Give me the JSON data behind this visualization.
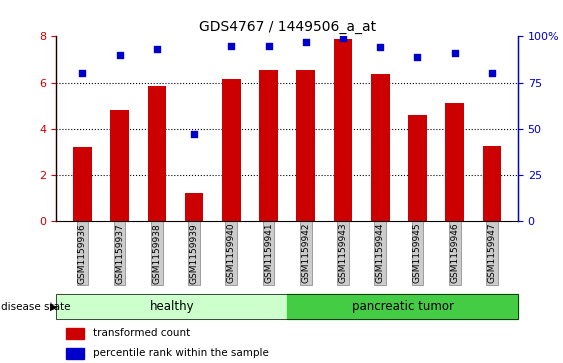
{
  "title": "GDS4767 / 1449506_a_at",
  "samples": [
    "GSM1159936",
    "GSM1159937",
    "GSM1159938",
    "GSM1159939",
    "GSM1159940",
    "GSM1159941",
    "GSM1159942",
    "GSM1159943",
    "GSM1159944",
    "GSM1159945",
    "GSM1159946",
    "GSM1159947"
  ],
  "transformed_count": [
    3.2,
    4.8,
    5.85,
    1.25,
    6.15,
    6.55,
    6.55,
    7.9,
    6.35,
    4.6,
    5.1,
    3.25
  ],
  "percentile_rank": [
    80,
    90,
    93,
    47,
    95,
    95,
    97,
    99,
    94,
    89,
    91,
    80
  ],
  "groups": [
    "healthy",
    "healthy",
    "healthy",
    "healthy",
    "healthy",
    "healthy",
    "pancreatic tumor",
    "pancreatic tumor",
    "pancreatic tumor",
    "pancreatic tumor",
    "pancreatic tumor",
    "pancreatic tumor"
  ],
  "healthy_color_light": "#ccffcc",
  "healthy_color": "#88dd88",
  "tumor_color": "#44cc44",
  "bar_color": "#cc0000",
  "dot_color": "#0000cc",
  "tick_bg_color": "#cccccc",
  "ylim_left": [
    0,
    8
  ],
  "ylim_right": [
    0,
    100
  ],
  "yticks_left": [
    0,
    2,
    4,
    6,
    8
  ],
  "yticks_right": [
    0,
    25,
    50,
    75,
    100
  ],
  "grid_values": [
    2,
    4,
    6
  ],
  "bar_width": 0.5
}
